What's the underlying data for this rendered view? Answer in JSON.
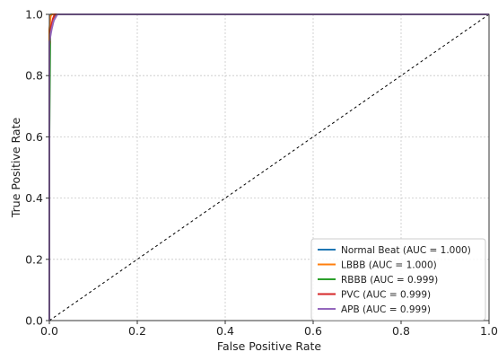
{
  "chart_data": {
    "type": "line",
    "title": "",
    "xlabel": "False Positive Rate",
    "ylabel": "True Positive Rate",
    "xlim": [
      0,
      1
    ],
    "ylim": [
      0,
      1
    ],
    "xticks": [
      0,
      0.2,
      0.4,
      0.6,
      0.8,
      1.0
    ],
    "yticks": [
      0,
      0.2,
      0.4,
      0.6,
      0.8,
      1.0
    ],
    "xtick_labels": [
      "0.0",
      "0.2",
      "0.4",
      "0.6",
      "0.8",
      "1.0"
    ],
    "ytick_labels": [
      "0.0",
      "0.2",
      "0.4",
      "0.6",
      "0.8",
      "1.0"
    ],
    "grid": true,
    "legend_position": "lower-right",
    "diagonal": {
      "x": [
        0,
        1
      ],
      "y": [
        0,
        1
      ],
      "style": "dashed",
      "color": "#000000"
    },
    "series": [
      {
        "name": "Normal Beat (AUC = 1.000)",
        "color": "#1f77b4",
        "x": [
          0,
          0,
          0.002,
          0.004,
          1
        ],
        "y": [
          0,
          0.93,
          0.99,
          1.0,
          1.0
        ]
      },
      {
        "name": "LBBB (AUC = 1.000)",
        "color": "#ff7f0e",
        "x": [
          0,
          0,
          0.003,
          0.006,
          1
        ],
        "y": [
          0,
          0.95,
          0.995,
          1.0,
          1.0
        ]
      },
      {
        "name": "RBBB (AUC = 0.999)",
        "color": "#2ca02c",
        "x": [
          0,
          0,
          0.002,
          0.005,
          0.01,
          0.015,
          1
        ],
        "y": [
          0,
          0.6,
          0.93,
          0.96,
          0.98,
          1.0,
          1.0
        ]
      },
      {
        "name": "PVC (AUC = 0.999)",
        "color": "#d62728",
        "x": [
          0,
          0,
          0.004,
          0.008,
          0.012,
          1
        ],
        "y": [
          0,
          0.9,
          0.96,
          0.985,
          1.0,
          1.0
        ]
      },
      {
        "name": "APB (AUC = 0.999)",
        "color": "#9467bd",
        "x": [
          0,
          0,
          0.005,
          0.01,
          0.018,
          1
        ],
        "y": [
          0,
          0.91,
          0.95,
          0.98,
          1.0,
          1.0
        ]
      }
    ]
  }
}
